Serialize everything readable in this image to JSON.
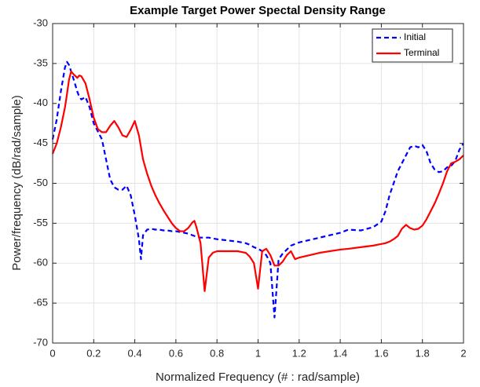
{
  "chart_data": {
    "type": "line",
    "title": "Example Target Power Spectal Density Range",
    "xlabel": "Normalized Frequency (#  :  rad/sample)",
    "ylabel": "Power/frequency (dB/rad/sample)",
    "x": [
      0,
      0.02,
      0.04,
      0.06,
      0.07,
      0.08,
      0.09,
      0.1,
      0.12,
      0.13,
      0.14,
      0.16,
      0.18,
      0.2,
      0.22,
      0.24,
      0.26,
      0.28,
      0.3,
      0.32,
      0.34,
      0.36,
      0.38,
      0.4,
      0.42,
      0.43,
      0.44,
      0.46,
      0.48,
      0.5,
      0.52,
      0.54,
      0.56,
      0.58,
      0.6,
      0.62,
      0.64,
      0.66,
      0.68,
      0.69,
      0.7,
      0.72,
      0.74,
      0.76,
      0.78,
      0.8,
      0.9,
      0.94,
      0.96,
      0.98,
      1.0,
      1.02,
      1.04,
      1.06,
      1.08,
      1.1,
      1.12,
      1.14,
      1.16,
      1.18,
      1.2,
      1.3,
      1.4,
      1.44,
      1.5,
      1.56,
      1.6,
      1.62,
      1.64,
      1.66,
      1.68,
      1.7,
      1.72,
      1.74,
      1.76,
      1.78,
      1.8,
      1.82,
      1.84,
      1.86,
      1.88,
      1.9,
      1.92,
      1.94,
      1.96,
      1.98,
      2.0
    ],
    "series": [
      {
        "name": "Initial",
        "color": "#0000ff",
        "linestyle": "dashed",
        "values": [
          -44.5,
          -42,
          -38.5,
          -35.5,
          -34.8,
          -35.2,
          -36,
          -36.8,
          -38.5,
          -39.2,
          -39.5,
          -39.2,
          -40.5,
          -42.5,
          -43.5,
          -44.5,
          -47,
          -49.5,
          -50.5,
          -50.8,
          -50.8,
          -50.3,
          -51.5,
          -54,
          -57,
          -59.5,
          -56.5,
          -55.8,
          -55.7,
          -55.8,
          -55.8,
          -55.9,
          -55.9,
          -56,
          -56,
          -56.1,
          -56.2,
          -56.3,
          -56.5,
          -56.6,
          -56.7,
          -56.8,
          -56.8,
          -56.8,
          -56.9,
          -57,
          -57.3,
          -57.5,
          -57.7,
          -58,
          -58.2,
          -58.5,
          -59,
          -60,
          -66.8,
          -59.5,
          -58.8,
          -58.3,
          -57.8,
          -57.6,
          -57.4,
          -56.8,
          -56.2,
          -55.8,
          -55.9,
          -55.5,
          -54.8,
          -53.5,
          -51.5,
          -50,
          -48.5,
          -47.5,
          -46.5,
          -45.5,
          -45.3,
          -45.5,
          -45.2,
          -46,
          -47.5,
          -48.3,
          -48.6,
          -48.5,
          -48,
          -47.8,
          -47.2,
          -45.8,
          -45
        ]
      },
      {
        "name": "Terminal",
        "color": "#ff0000",
        "linestyle": "solid",
        "values": [
          -46.3,
          -45,
          -43,
          -40.5,
          -38.8,
          -37,
          -36,
          -36.3,
          -36.8,
          -36.5,
          -36.6,
          -37.5,
          -39.5,
          -41.8,
          -43.2,
          -43.6,
          -43.6,
          -42.8,
          -42.2,
          -43,
          -44,
          -44.2,
          -43.3,
          -42.2,
          -44,
          -45.5,
          -47,
          -48.8,
          -50.3,
          -51.5,
          -52.5,
          -53.4,
          -54.2,
          -55,
          -55.6,
          -56,
          -56,
          -55.6,
          -54.9,
          -54.7,
          -55.5,
          -57.5,
          -63.5,
          -59.3,
          -58.7,
          -58.5,
          -58.5,
          -58.7,
          -59.2,
          -60,
          -63.2,
          -58.5,
          -58.2,
          -59,
          -60.3,
          -60.3,
          -59.8,
          -59,
          -58.5,
          -59.5,
          -59.3,
          -58.7,
          -58.3,
          -58.2,
          -58,
          -57.8,
          -57.6,
          -57.5,
          -57.3,
          -57,
          -56.6,
          -55.7,
          -55.2,
          -55.6,
          -55.8,
          -55.7,
          -55.3,
          -54.5,
          -53.5,
          -52.5,
          -51.3,
          -50,
          -48.5,
          -47.5,
          -47.3,
          -47,
          -46.5
        ]
      }
    ],
    "xlim": [
      0,
      2
    ],
    "xticks": [
      0,
      0.2,
      0.4,
      0.6,
      0.8,
      1,
      1.2,
      1.4,
      1.6,
      1.8,
      2
    ],
    "ylim": [
      -70,
      -30
    ],
    "yticks": [
      -70,
      -65,
      -60,
      -55,
      -50,
      -45,
      -40,
      -35,
      -30
    ],
    "grid": true,
    "legend": "northeast"
  }
}
